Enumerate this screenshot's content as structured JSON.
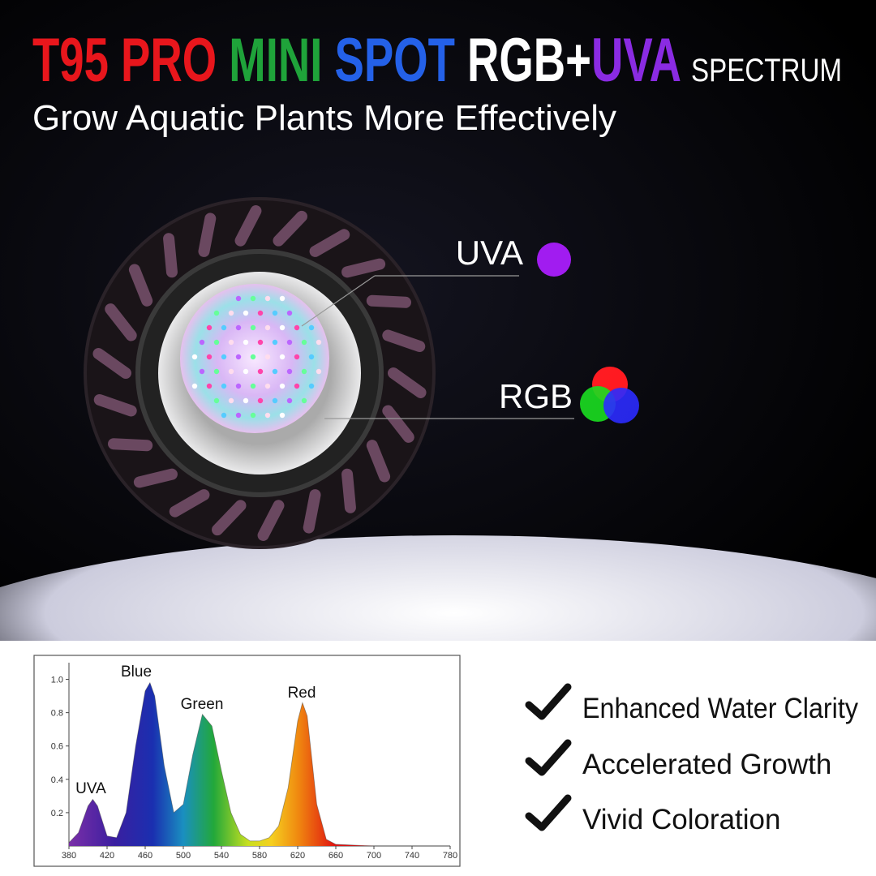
{
  "header": {
    "title_parts": [
      "T95 PRO",
      "MINI",
      "SPOT",
      "RGB+",
      "UVA"
    ],
    "title_suffix": "SPECTRUM",
    "subtitle": "Grow Aquatic Plants More Effectively"
  },
  "callouts": [
    "UVA",
    "RGB"
  ],
  "chart_data": {
    "type": "area",
    "x": [
      380,
      390,
      400,
      405,
      410,
      420,
      430,
      440,
      450,
      460,
      465,
      470,
      480,
      490,
      500,
      510,
      520,
      530,
      540,
      550,
      560,
      570,
      580,
      590,
      600,
      610,
      620,
      625,
      630,
      640,
      650,
      660,
      700,
      740,
      780
    ],
    "values": [
      0.02,
      0.08,
      0.24,
      0.28,
      0.24,
      0.06,
      0.05,
      0.2,
      0.6,
      0.93,
      0.98,
      0.9,
      0.48,
      0.2,
      0.25,
      0.55,
      0.79,
      0.72,
      0.45,
      0.2,
      0.07,
      0.03,
      0.03,
      0.05,
      0.12,
      0.35,
      0.75,
      0.86,
      0.78,
      0.25,
      0.04,
      0.01,
      0,
      0,
      0
    ],
    "annotations": [
      "UVA",
      "Blue",
      "Green",
      "Red"
    ],
    "xlim": [
      380,
      780
    ],
    "xticks": [
      380,
      420,
      460,
      500,
      540,
      580,
      620,
      660,
      700,
      740,
      780
    ],
    "ylim": [
      0,
      1.1
    ],
    "yticks": [
      0.2,
      0.4,
      0.6,
      0.8,
      {
        "value": 1,
        "label": "1.0"
      }
    ]
  },
  "features": [
    "Enhanced Water Clarity",
    "Accelerated Growth",
    "Vivid Coloration"
  ]
}
